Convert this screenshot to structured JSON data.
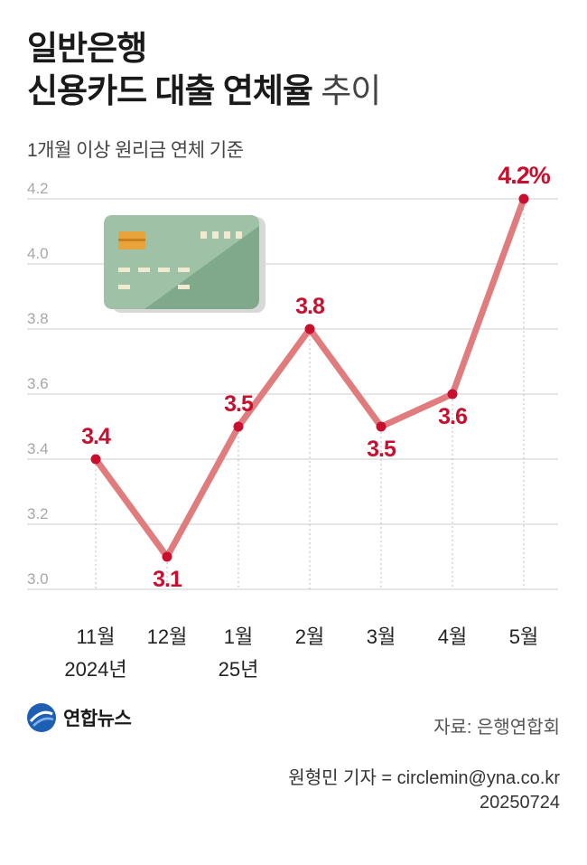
{
  "title": {
    "line1": "일반은행",
    "line2_bold": "신용카드 대출 연체율",
    "line2_light": "추이"
  },
  "subtitle": "1개월 이상 원리금 연체 기준",
  "chart_data": {
    "type": "line",
    "categories": [
      "11월",
      "12월",
      "1월",
      "2월",
      "3월",
      "4월",
      "5월"
    ],
    "category_sublabels": [
      "2024년",
      "",
      "25년",
      "",
      "",
      "",
      ""
    ],
    "values": [
      3.4,
      3.1,
      3.5,
      3.8,
      3.5,
      3.6,
      4.2
    ],
    "data_labels": [
      "3.4",
      "3.1",
      "3.5",
      "3.8",
      "3.5",
      "3.6",
      "4.2%"
    ],
    "yticks": [
      "3.0",
      "3.2",
      "3.4",
      "3.6",
      "3.8",
      "4.0",
      "4.2"
    ],
    "ylim": [
      3.0,
      4.2
    ],
    "grid": true,
    "colors": {
      "line": "#e07b7e",
      "point": "#c8102e",
      "label": "#c8102e",
      "grid": "#cccccc",
      "card": "#7fa98a",
      "card_light": "#9fc2a6",
      "chip": "#e8a33a"
    }
  },
  "footer": {
    "logo": "연합뉴스",
    "source": "자료: 은행연합회",
    "credit_line1": "원형민 기자 = circlemin@yna.co.kr",
    "credit_line2": "20250724"
  }
}
